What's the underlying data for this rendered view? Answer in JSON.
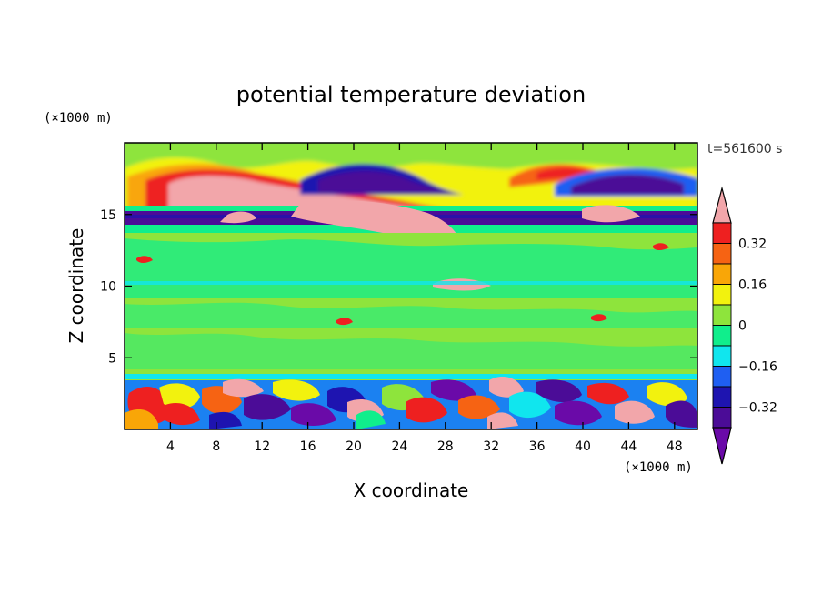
{
  "chart_data": {
    "type": "heatmap",
    "title": "potential temperature deviation",
    "xlabel": "X coordinate",
    "ylabel": "Z coordinate",
    "x_unit": "(×1000 m)",
    "y_unit": "(×1000 m)",
    "time_label": "t=561600 s",
    "xlim": [
      0,
      50
    ],
    "ylim": [
      0,
      20
    ],
    "x_ticks": [
      4,
      8,
      12,
      16,
      20,
      24,
      28,
      32,
      36,
      40,
      44,
      48
    ],
    "y_ticks": [
      5,
      10,
      15
    ],
    "colorbar": {
      "levels": [
        -0.4,
        -0.32,
        -0.24,
        -0.16,
        -0.08,
        0,
        0.08,
        0.16,
        0.24,
        0.32,
        0.4
      ],
      "labeled_ticks": [
        0.32,
        0.16,
        0,
        -0.16,
        -0.32
      ],
      "tick_labels": [
        "0.32",
        "0.16",
        "0",
        "−0.16",
        "−0.32"
      ],
      "colors": [
        "#6a0aa8",
        "#4b0c97",
        "#1e14b0",
        "#1f5ff2",
        "#10e6ee",
        "#10ee8c",
        "#8ee43c",
        "#f2f20e",
        "#f9a607",
        "#f66313",
        "#ee2020",
        "#f2a6aa"
      ],
      "extend": "both"
    },
    "features": [
      {
        "region": "upper band",
        "z_range": [
          17,
          19
        ],
        "values": "positive warm anomaly near x 2-16 and 30-36, cold anomaly near x 18-28 and 38-48"
      },
      {
        "region": "tropopause layer",
        "z_range": [
          13.5,
          15.5
        ],
        "values": "strong negative band with positive plume from x 18 to 30"
      },
      {
        "region": "free troposphere",
        "z_range": [
          3.5,
          13.5
        ],
        "values": "near zero with small scattered anomalies"
      },
      {
        "region": "boundary layer",
        "z_range": [
          0,
          3.5
        ],
        "values": "turbulent mixed positive and negative anomalies"
      }
    ]
  }
}
